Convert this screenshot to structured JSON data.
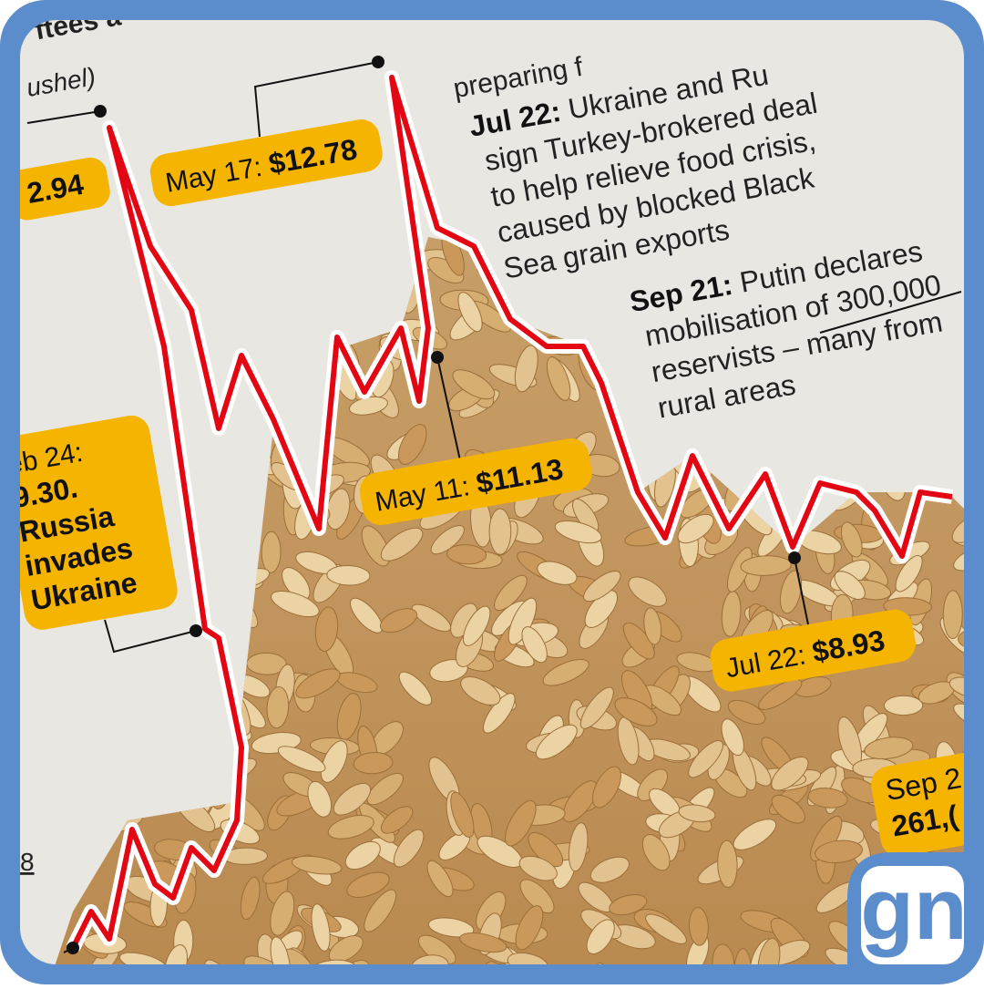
{
  "header": {
    "title": "ftees a",
    "unit": "ushel)"
  },
  "callouts": [
    {
      "date": "",
      "price": "2.94"
    },
    {
      "date": "May 17: ",
      "price": "$12.78"
    },
    {
      "date": "May 11: ",
      "price": "$11.13"
    },
    {
      "date": "Jul 22: ",
      "price": "$8.93"
    }
  ],
  "feb_callout": {
    "lines": [
      "eb 24:",
      "9.30.",
      "Russia",
      "invades",
      "Ukraine"
    ]
  },
  "axis_fragment": "8",
  "timeline": {
    "top": "preparing f",
    "events": [
      {
        "date": "Jul 22:",
        "lines": [
          " Ukraine and Ru",
          "sign Turkey-brokered deal",
          "to help relieve food crisis,",
          "caused by blocked Black",
          "Sea grain exports"
        ]
      },
      {
        "date": "Sep 21:",
        "lines": [
          " Putin declares",
          "mobilisation of 300,000",
          "reservists – many from",
          "rural areas"
        ]
      }
    ]
  },
  "sep_callout": {
    "lines": [
      "Sep 2",
      "261,("
    ]
  },
  "logo": "gn"
}
